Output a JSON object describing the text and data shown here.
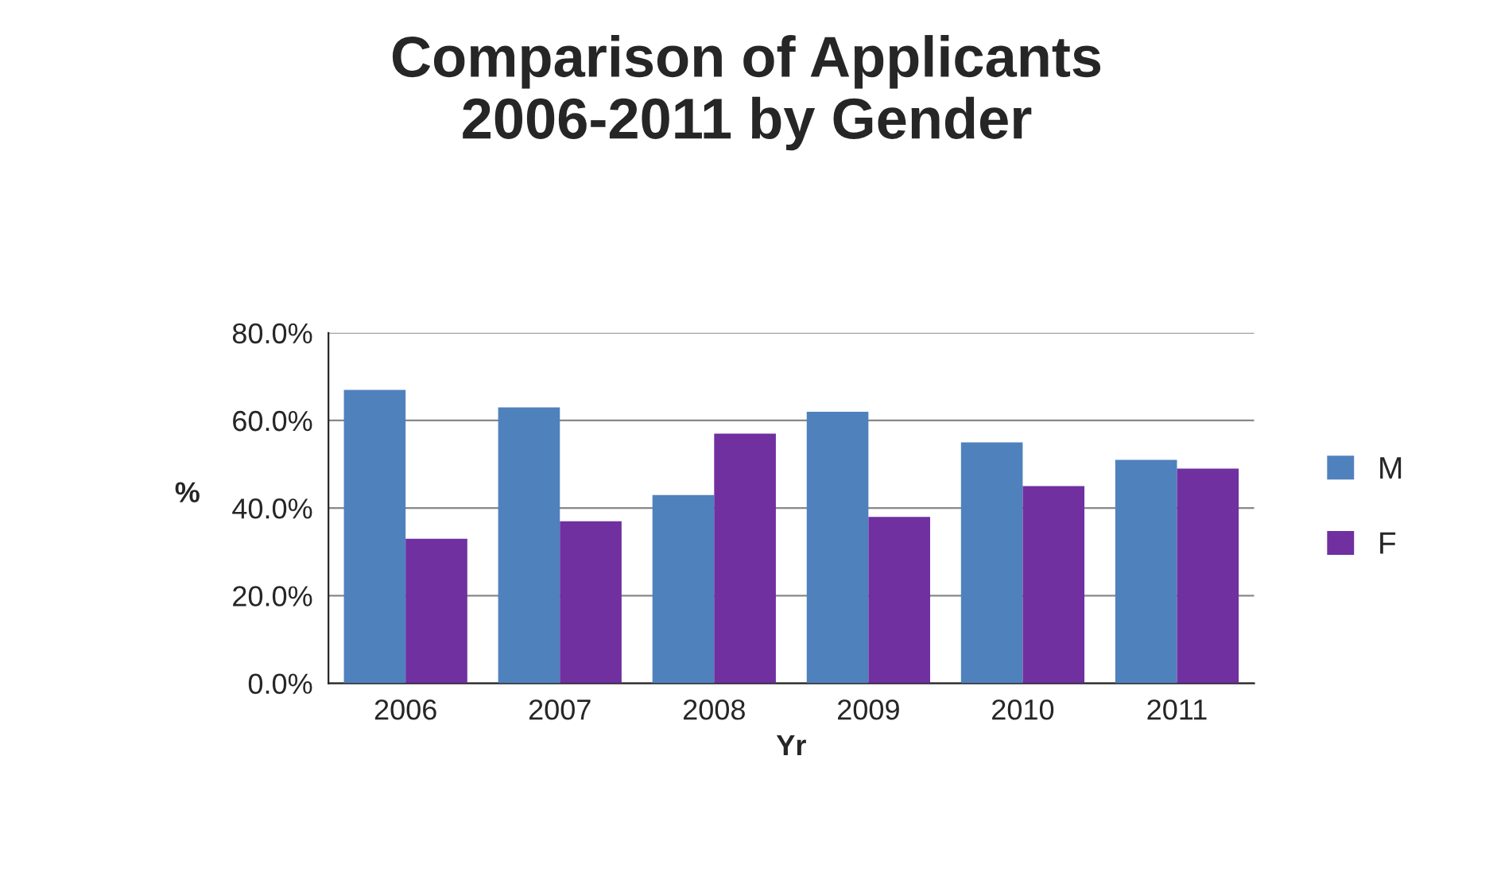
{
  "chart_data": {
    "type": "bar",
    "title": "Comparison of Applicants\n2006-2011 by Gender",
    "xlabel": "Yr",
    "ylabel": "%",
    "categories": [
      "2006",
      "2007",
      "2008",
      "2009",
      "2010",
      "2011"
    ],
    "series": [
      {
        "name": "M",
        "color": "#4f81bd",
        "values": [
          67,
          63,
          43,
          62,
          55,
          51
        ]
      },
      {
        "name": "F",
        "color": "#7030a0",
        "values": [
          33,
          37,
          57,
          38,
          45,
          49
        ]
      }
    ],
    "ylim": [
      0,
      80
    ],
    "yticks": [
      {
        "value": 0,
        "label": "0.0%"
      },
      {
        "value": 20,
        "label": "20.0%"
      },
      {
        "value": 40,
        "label": "40.0%"
      },
      {
        "value": 60,
        "label": "60.0%"
      },
      {
        "value": 80,
        "label": "80.0%"
      }
    ],
    "grid": "y",
    "legend": "right"
  }
}
